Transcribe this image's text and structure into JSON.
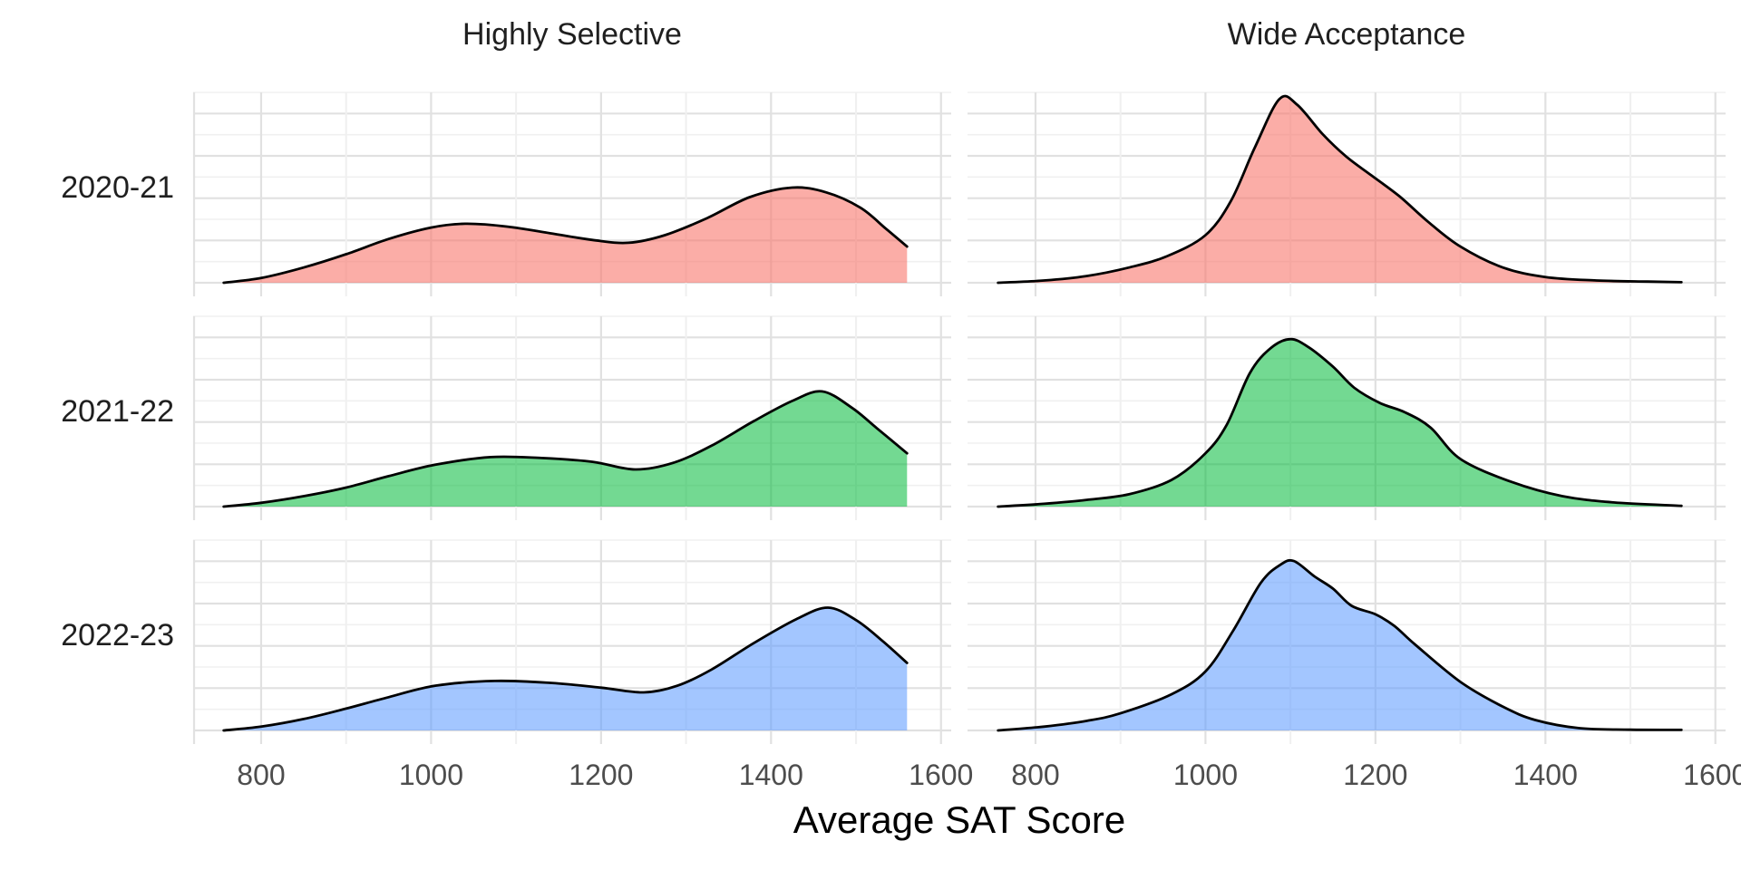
{
  "chart_data": {
    "type": "area",
    "subtype": "faceted-density-ridgeline",
    "title": "",
    "xlabel": "Average SAT Score",
    "facet_columns": [
      "Highly Selective",
      "Wide Acceptance"
    ],
    "facet_rows": [
      "2020-21",
      "2021-22",
      "2022-23"
    ],
    "x_ticks": [
      800,
      1000,
      1200,
      1400,
      1600
    ],
    "x_minor_ticks": [
      900,
      1100,
      1300,
      1500
    ],
    "x_domain": [
      720,
      1612
    ],
    "grid": "on",
    "legend": "none",
    "y_unit": "density as fraction of panel height",
    "colors": {
      "background": "#FFFFFF",
      "outline": "#000000",
      "grid_major": "#E1E1E1",
      "grid_minor": "#F0F0F0",
      "axis_line": "#E1E1E1",
      "axis_text": "#4D4D4D",
      "row_label_text": "#1F1F1F",
      "strip_text": "#1F1F1F",
      "axis_title_text": "#000000",
      "fill_2020_21": "rgba(248,118,109,0.60)",
      "fill_2021_22": "rgba(0,186,56,0.55)",
      "fill_2022_23": "rgba(97,156,255,0.58)"
    },
    "series": [
      {
        "row": "2020-21",
        "column": "Highly Selective",
        "fill_key": "fill_2020_21",
        "clipped_right": true,
        "points": [
          [
            756,
            0
          ],
          [
            800,
            0.025
          ],
          [
            850,
            0.08
          ],
          [
            900,
            0.15
          ],
          [
            950,
            0.23
          ],
          [
            1000,
            0.29
          ],
          [
            1040,
            0.31
          ],
          [
            1090,
            0.295
          ],
          [
            1140,
            0.26
          ],
          [
            1190,
            0.225
          ],
          [
            1232,
            0.21
          ],
          [
            1275,
            0.25
          ],
          [
            1325,
            0.34
          ],
          [
            1375,
            0.45
          ],
          [
            1425,
            0.5
          ],
          [
            1465,
            0.475
          ],
          [
            1505,
            0.395
          ],
          [
            1535,
            0.285
          ],
          [
            1560,
            0.19
          ]
        ]
      },
      {
        "row": "2020-21",
        "column": "Wide Acceptance",
        "fill_key": "fill_2020_21",
        "clipped_right": false,
        "points": [
          [
            756,
            0
          ],
          [
            810,
            0.012
          ],
          [
            860,
            0.035
          ],
          [
            910,
            0.08
          ],
          [
            955,
            0.14
          ],
          [
            1000,
            0.25
          ],
          [
            1030,
            0.43
          ],
          [
            1058,
            0.71
          ],
          [
            1087,
            0.965
          ],
          [
            1108,
            0.935
          ],
          [
            1138,
            0.78
          ],
          [
            1165,
            0.665
          ],
          [
            1195,
            0.565
          ],
          [
            1228,
            0.455
          ],
          [
            1262,
            0.32
          ],
          [
            1300,
            0.19
          ],
          [
            1350,
            0.08
          ],
          [
            1400,
            0.03
          ],
          [
            1460,
            0.012
          ],
          [
            1520,
            0.006
          ],
          [
            1560,
            0.003
          ]
        ]
      },
      {
        "row": "2021-22",
        "column": "Highly Selective",
        "fill_key": "fill_2021_22",
        "clipped_right": true,
        "points": [
          [
            756,
            0
          ],
          [
            800,
            0.02
          ],
          [
            850,
            0.055
          ],
          [
            900,
            0.1
          ],
          [
            950,
            0.16
          ],
          [
            1005,
            0.22
          ],
          [
            1070,
            0.26
          ],
          [
            1130,
            0.255
          ],
          [
            1190,
            0.235
          ],
          [
            1240,
            0.195
          ],
          [
            1285,
            0.23
          ],
          [
            1330,
            0.32
          ],
          [
            1380,
            0.45
          ],
          [
            1425,
            0.555
          ],
          [
            1460,
            0.605
          ],
          [
            1495,
            0.52
          ],
          [
            1525,
            0.41
          ],
          [
            1560,
            0.28
          ]
        ]
      },
      {
        "row": "2021-22",
        "column": "Wide Acceptance",
        "fill_key": "fill_2021_22",
        "clipped_right": false,
        "points": [
          [
            756,
            0
          ],
          [
            810,
            0.015
          ],
          [
            860,
            0.035
          ],
          [
            910,
            0.065
          ],
          [
            960,
            0.14
          ],
          [
            1000,
            0.28
          ],
          [
            1025,
            0.43
          ],
          [
            1052,
            0.7
          ],
          [
            1076,
            0.83
          ],
          [
            1100,
            0.88
          ],
          [
            1122,
            0.835
          ],
          [
            1150,
            0.735
          ],
          [
            1175,
            0.625
          ],
          [
            1205,
            0.545
          ],
          [
            1235,
            0.495
          ],
          [
            1265,
            0.415
          ],
          [
            1300,
            0.25
          ],
          [
            1360,
            0.13
          ],
          [
            1420,
            0.055
          ],
          [
            1480,
            0.022
          ],
          [
            1560,
            0.004
          ]
        ]
      },
      {
        "row": "2022-23",
        "column": "Highly Selective",
        "fill_key": "fill_2022_23",
        "clipped_right": true,
        "points": [
          [
            756,
            0
          ],
          [
            800,
            0.02
          ],
          [
            850,
            0.06
          ],
          [
            900,
            0.115
          ],
          [
            950,
            0.175
          ],
          [
            1005,
            0.235
          ],
          [
            1075,
            0.26
          ],
          [
            1140,
            0.25
          ],
          [
            1200,
            0.225
          ],
          [
            1250,
            0.2
          ],
          [
            1290,
            0.235
          ],
          [
            1330,
            0.32
          ],
          [
            1380,
            0.46
          ],
          [
            1430,
            0.585
          ],
          [
            1467,
            0.645
          ],
          [
            1500,
            0.58
          ],
          [
            1530,
            0.475
          ],
          [
            1560,
            0.355
          ]
        ]
      },
      {
        "row": "2022-23",
        "column": "Wide Acceptance",
        "fill_key": "fill_2022_23",
        "clipped_right": false,
        "points": [
          [
            756,
            0
          ],
          [
            810,
            0.02
          ],
          [
            860,
            0.05
          ],
          [
            900,
            0.09
          ],
          [
            960,
            0.19
          ],
          [
            1000,
            0.31
          ],
          [
            1032,
            0.52
          ],
          [
            1065,
            0.775
          ],
          [
            1088,
            0.87
          ],
          [
            1104,
            0.89
          ],
          [
            1128,
            0.81
          ],
          [
            1150,
            0.745
          ],
          [
            1172,
            0.655
          ],
          [
            1200,
            0.61
          ],
          [
            1222,
            0.55
          ],
          [
            1247,
            0.45
          ],
          [
            1300,
            0.255
          ],
          [
            1350,
            0.125
          ],
          [
            1388,
            0.055
          ],
          [
            1440,
            0.012
          ],
          [
            1500,
            0.004
          ],
          [
            1560,
            0.003
          ]
        ]
      }
    ]
  }
}
